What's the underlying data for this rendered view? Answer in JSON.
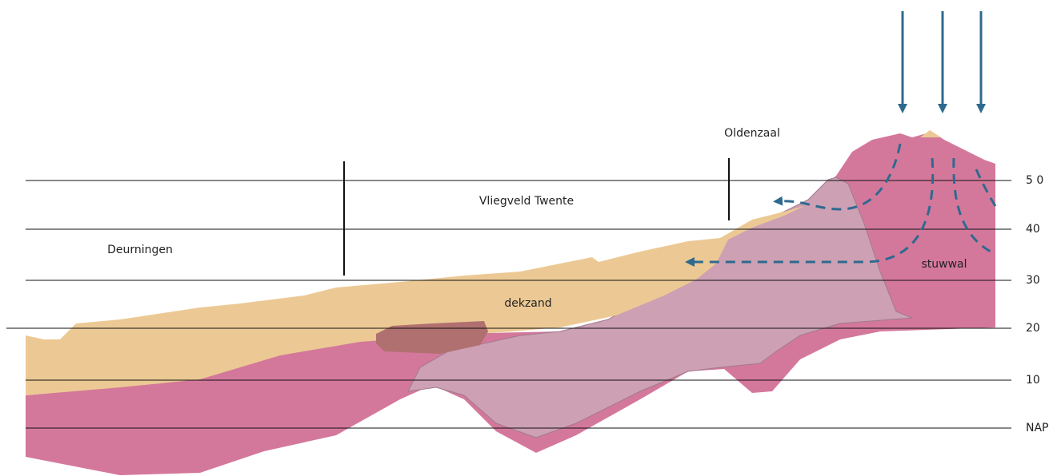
{
  "places": [
    "Oldenzaal",
    "Vliegveld Twente",
    "Deurningen"
  ],
  "layers": [
    "dekzand",
    "stuwwal"
  ],
  "elevations": [
    "5 0",
    "40",
    "30",
    "20",
    "10",
    "NAP"
  ]
}
